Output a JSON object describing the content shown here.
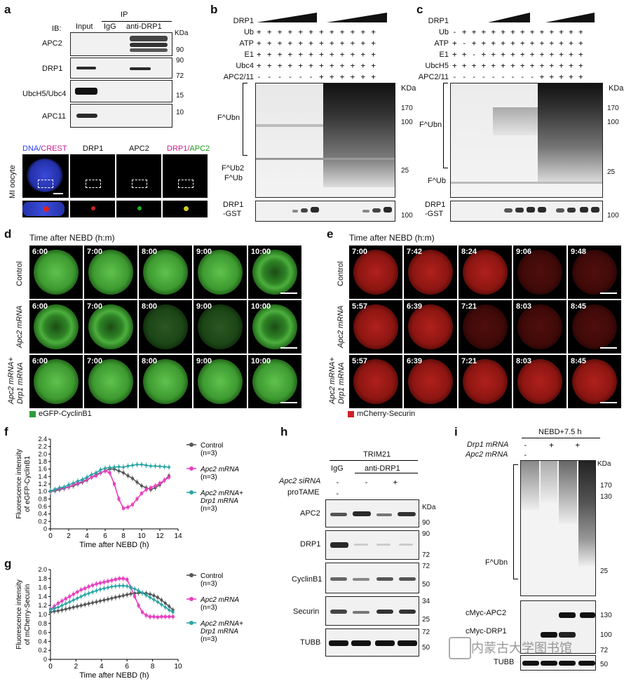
{
  "panels": {
    "a": {
      "label": "a",
      "ib": "IB:",
      "ip": "IP",
      "cols": [
        "Input",
        "IgG",
        "anti-DRP1"
      ],
      "kda": "KDa",
      "rows": [
        "APC2",
        "DRP1",
        "UbcH5/Ubc4",
        "APC11"
      ],
      "mw": [
        "90",
        "90",
        "72",
        "15",
        "10"
      ],
      "if_headers": [
        "DNA/",
        "CREST",
        "DRP1",
        "APC2",
        "DRP1/",
        "APC2"
      ],
      "side": "MI oocyte"
    },
    "b": {
      "label": "b",
      "rows": [
        "DRP1",
        "Ub",
        "ATP",
        "E1",
        "Ubc4",
        "APC2/11"
      ],
      "kda": "KDa",
      "mw": [
        "170",
        "100",
        "25",
        "100"
      ],
      "left": [
        "F^Ubn",
        "F^Ub2",
        "F^Ub",
        "DRP1",
        "-GST"
      ]
    },
    "c": {
      "label": "c",
      "rows": [
        "DRP1",
        "Ub",
        "ATP",
        "E1",
        "UbcH5",
        "APC2/11"
      ],
      "kda": "KDa",
      "mw": [
        "170",
        "100",
        "25",
        "100"
      ],
      "left": [
        "F^Ubn",
        "F^Ub",
        "DRP1",
        "-GST"
      ]
    },
    "d": {
      "label": "d",
      "title": "Time after NEBD (h:m)",
      "rows": [
        "Control",
        "Apc2 mRNA",
        "Apc2 mRNA+",
        "Drp1 mRNA"
      ],
      "times": [
        [
          "6:00",
          "7:00",
          "8:00",
          "9:00",
          "10:00"
        ],
        [
          "6:00",
          "7:00",
          "8:00",
          "9:00",
          "10:00"
        ],
        [
          "6:00",
          "7:00",
          "8:00",
          "9:00",
          "10:00"
        ]
      ],
      "legend": "eGFP-CyclinB1",
      "legend_color": "#2e9b3c"
    },
    "e": {
      "label": "e",
      "title": "Time after NEBD (h:m)",
      "rows": [
        "Control",
        "Apc2 mRNA",
        "Apc2 mRNA+",
        "Drp1 mRNA"
      ],
      "times": [
        [
          "7:00",
          "7:42",
          "8:24",
          "9:06",
          "9:48"
        ],
        [
          "5:57",
          "6:39",
          "7:21",
          "8:03",
          "8:45"
        ],
        [
          "5:57",
          "6:39",
          "7:21",
          "8:03",
          "8:45"
        ]
      ],
      "legend": "mCherry-Securin",
      "legend_color": "#d0202a"
    },
    "h": {
      "label": "h",
      "header": "TRIM21",
      "cols": [
        "IgG",
        "anti-DRP1"
      ],
      "cond": [
        "Apc2 siRNA",
        "proTAME"
      ],
      "rows": [
        "APC2",
        "DRP1",
        "CyclinB1",
        "Securin",
        "TUBB"
      ],
      "kda": "KDa",
      "mw": [
        "90",
        "90",
        "72",
        "72",
        "50",
        "34",
        "25",
        "72",
        "50"
      ]
    },
    "i": {
      "label": "i",
      "header": "NEBD+7.5 h",
      "cond": [
        "Drp1 mRNA",
        "Apc2 mRNA"
      ],
      "kda": "KDa",
      "mw": [
        "170",
        "130",
        "25",
        "130",
        "100",
        "72",
        "50"
      ],
      "left": [
        "F^Ubn",
        "cMyc-APC2",
        "cMyc-DRP1",
        "TUBB"
      ],
      "watermark": "内蒙古大学图书馆"
    }
  },
  "chart_data": [
    {
      "panel": "f",
      "type": "line",
      "xlabel": "Time after NEBD (h)",
      "ylabel": "Fluorescence intensity",
      "ylabel2": "of eGFP-CyclinB1",
      "xlim": [
        0,
        14
      ],
      "ylim": [
        0,
        2.4
      ],
      "xticks": [
        "0",
        "2",
        "4",
        "6",
        "8",
        "10",
        "12",
        "14"
      ],
      "yticks": [
        "0",
        "0.2",
        "0.4",
        "0.6",
        "0.8",
        "1.0",
        "1.2",
        "1.4",
        "1.6",
        "1.8",
        "2.0",
        "2.2",
        "2.4"
      ],
      "series": [
        {
          "name": "Control",
          "n": "(n=3)",
          "color": "#555555",
          "marker": "circle",
          "x": [
            0,
            0.5,
            1,
            1.5,
            2,
            2.5,
            3,
            3.5,
            4,
            4.5,
            5,
            5.5,
            6,
            6.5,
            7,
            7.5,
            8,
            8.5,
            9,
            9.5,
            10,
            10.5,
            11,
            11.5,
            12,
            12.5,
            13
          ],
          "y": [
            1.0,
            1.02,
            1.05,
            1.08,
            1.12,
            1.15,
            1.2,
            1.25,
            1.3,
            1.38,
            1.45,
            1.5,
            1.55,
            1.6,
            1.6,
            1.55,
            1.5,
            1.42,
            1.35,
            1.25,
            1.15,
            1.1,
            1.05,
            1.1,
            1.18,
            1.3,
            1.42
          ]
        },
        {
          "name": "Apc2 mRNA",
          "n": "(n=3)",
          "color": "#e83fbf",
          "marker": "square",
          "x": [
            0,
            0.5,
            1,
            1.5,
            2,
            2.5,
            3,
            3.5,
            4,
            4.5,
            5,
            5.5,
            6,
            6.5,
            7,
            7.5,
            8,
            8.5,
            9,
            9.5,
            10,
            10.5,
            11,
            11.5,
            12,
            12.5,
            13
          ],
          "y": [
            1.0,
            1.05,
            1.08,
            1.1,
            1.12,
            1.18,
            1.22,
            1.27,
            1.32,
            1.38,
            1.42,
            1.5,
            1.55,
            1.5,
            1.2,
            0.8,
            0.55,
            0.58,
            0.65,
            0.8,
            0.95,
            1.05,
            1.1,
            1.15,
            1.22,
            1.3,
            1.38
          ]
        },
        {
          "name": "Apc2 mRNA+",
          "name2": "Drp1 mRNA",
          "n": "(n=3)",
          "color": "#2aa5a5",
          "marker": "diamond",
          "x": [
            0,
            0.5,
            1,
            1.5,
            2,
            2.5,
            3,
            3.5,
            4,
            4.5,
            5,
            5.5,
            6,
            6.5,
            7,
            7.5,
            8,
            8.5,
            9,
            9.5,
            10,
            10.5,
            11,
            11.5,
            12,
            12.5,
            13
          ],
          "y": [
            1.02,
            1.05,
            1.1,
            1.12,
            1.18,
            1.22,
            1.28,
            1.32,
            1.38,
            1.45,
            1.5,
            1.58,
            1.62,
            1.64,
            1.65,
            1.66,
            1.65,
            1.68,
            1.7,
            1.72,
            1.72,
            1.7,
            1.68,
            1.68,
            1.67,
            1.66,
            1.65
          ]
        }
      ]
    },
    {
      "panel": "g",
      "type": "line",
      "xlabel": "Time after NEBD (h)",
      "ylabel": "Fluorescence intensity",
      "ylabel2": "of mCherry-Securin",
      "xlim": [
        0,
        10
      ],
      "ylim": [
        0,
        2.0
      ],
      "xticks": [
        "0",
        "2",
        "4",
        "6",
        "8",
        "10"
      ],
      "yticks": [
        "0",
        "0.2",
        "0.4",
        "0.6",
        "0.8",
        "1.0",
        "1.2",
        "1.4",
        "1.6",
        "1.8",
        "2.0"
      ],
      "series": [
        {
          "name": "Control",
          "n": "(n=3)",
          "color": "#555555",
          "marker": "circle",
          "x": [
            0,
            0.3,
            0.6,
            0.9,
            1.2,
            1.5,
            1.8,
            2.1,
            2.4,
            2.7,
            3.0,
            3.3,
            3.6,
            3.9,
            4.2,
            4.5,
            4.8,
            5.1,
            5.4,
            5.7,
            6.0,
            6.3,
            6.6,
            6.9,
            7.2,
            7.5,
            7.8,
            8.1,
            8.4,
            8.7,
            9.0,
            9.3,
            9.6
          ],
          "y": [
            1.05,
            1.07,
            1.08,
            1.1,
            1.12,
            1.14,
            1.16,
            1.18,
            1.2,
            1.22,
            1.24,
            1.26,
            1.28,
            1.3,
            1.32,
            1.34,
            1.36,
            1.38,
            1.4,
            1.42,
            1.44,
            1.46,
            1.47,
            1.48,
            1.48,
            1.47,
            1.45,
            1.42,
            1.38,
            1.32,
            1.25,
            1.18,
            1.1
          ]
        },
        {
          "name": "Apc2 mRNA",
          "n": "(n=3)",
          "color": "#e83fbf",
          "marker": "square",
          "x": [
            0,
            0.3,
            0.6,
            0.9,
            1.2,
            1.5,
            1.8,
            2.1,
            2.4,
            2.7,
            3.0,
            3.3,
            3.6,
            3.9,
            4.2,
            4.5,
            4.8,
            5.1,
            5.4,
            5.7,
            6.0,
            6.3,
            6.6,
            6.9,
            7.2,
            7.5,
            7.8,
            8.1,
            8.4,
            8.7,
            9.0,
            9.3,
            9.6
          ],
          "y": [
            1.12,
            1.18,
            1.25,
            1.3,
            1.35,
            1.4,
            1.45,
            1.5,
            1.55,
            1.58,
            1.62,
            1.65,
            1.68,
            1.7,
            1.72,
            1.74,
            1.76,
            1.78,
            1.8,
            1.8,
            1.78,
            1.6,
            1.4,
            1.2,
            1.05,
            0.98,
            0.95,
            0.95,
            0.94,
            0.95,
            0.95,
            0.95,
            0.95
          ]
        },
        {
          "name": "Apc2 mRNA+",
          "name2": "Drp1 mRNA",
          "n": "(n=3)",
          "color": "#2aa5a5",
          "marker": "diamond",
          "x": [
            0,
            0.3,
            0.6,
            0.9,
            1.2,
            1.5,
            1.8,
            2.1,
            2.4,
            2.7,
            3.0,
            3.3,
            3.6,
            3.9,
            4.2,
            4.5,
            4.8,
            5.1,
            5.4,
            5.7,
            6.0,
            6.3,
            6.6,
            6.9,
            7.2,
            7.5,
            7.8,
            8.1,
            8.4,
            8.7,
            9.0,
            9.3,
            9.6
          ],
          "y": [
            1.1,
            1.13,
            1.16,
            1.2,
            1.24,
            1.28,
            1.32,
            1.36,
            1.4,
            1.44,
            1.47,
            1.5,
            1.53,
            1.56,
            1.58,
            1.6,
            1.62,
            1.63,
            1.64,
            1.64,
            1.63,
            1.6,
            1.57,
            1.53,
            1.48,
            1.43,
            1.38,
            1.33,
            1.28,
            1.22,
            1.16,
            1.1,
            1.05
          ]
        }
      ]
    }
  ]
}
